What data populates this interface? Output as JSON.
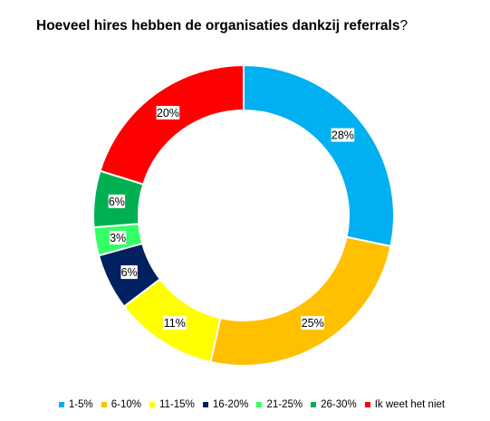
{
  "title_main": "Hoeveel hires hebben de organisaties dankzij referrals",
  "title_end": "?",
  "chart_data": {
    "type": "pie",
    "title": "Hoeveel hires hebben de organisaties dankzij referrals?",
    "donut": true,
    "legend_position": "bottom",
    "categories": [
      "1-5%",
      "6-10%",
      "11-15%",
      "16-20%",
      "21-25%",
      "26-30%",
      "Ik weet het niet"
    ],
    "values": [
      28,
      25,
      11,
      6,
      3,
      6,
      20
    ],
    "labels": [
      "28%",
      "25%",
      "11%",
      "6%",
      "3%",
      "6%",
      "20%"
    ],
    "colors": [
      "#00b0f0",
      "#ffc000",
      "#ffff00",
      "#002060",
      "#33ff66",
      "#00b050",
      "#ff0000"
    ]
  }
}
